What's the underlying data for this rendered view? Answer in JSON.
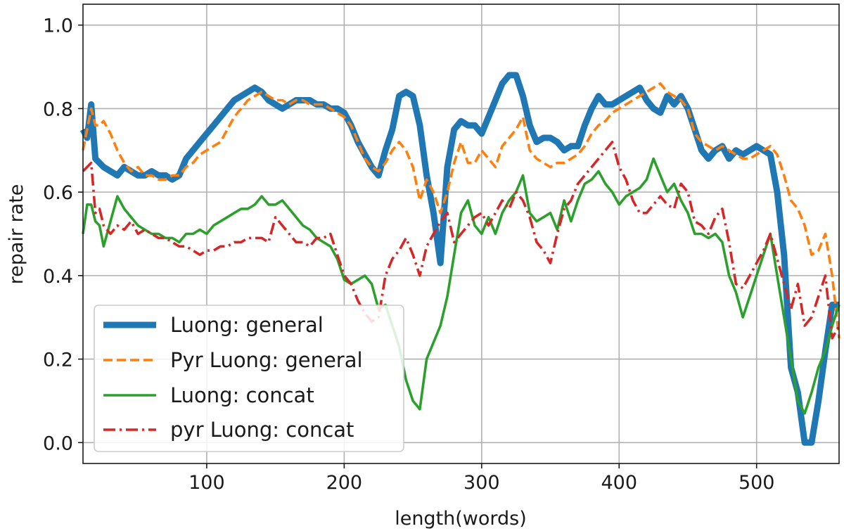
{
  "chart_data": {
    "type": "line",
    "title": "",
    "xlabel": "length(words)",
    "ylabel": "repair rate",
    "xlim": [
      10,
      560
    ],
    "ylim": [
      -0.05,
      1.05
    ],
    "xticks": [
      100,
      200,
      300,
      400,
      500
    ],
    "yticks": [
      0.0,
      0.2,
      0.4,
      0.6,
      0.8,
      1.0
    ],
    "xtick_labels": [
      "100",
      "200",
      "300",
      "400",
      "500"
    ],
    "ytick_labels": [
      "0.0",
      "0.2",
      "0.4",
      "0.6",
      "0.8",
      "1.0"
    ],
    "grid": true,
    "legend_position": "lower-left",
    "series": [
      {
        "name": "Luong: general",
        "color": "#1f77b4",
        "style": "solid-thick",
        "x": [
          10,
          13,
          16,
          19,
          22,
          25,
          30,
          35,
          40,
          45,
          50,
          55,
          60,
          65,
          70,
          75,
          80,
          85,
          90,
          95,
          100,
          105,
          110,
          115,
          120,
          125,
          130,
          135,
          140,
          145,
          150,
          155,
          160,
          165,
          170,
          175,
          180,
          185,
          190,
          195,
          200,
          205,
          210,
          215,
          220,
          225,
          230,
          235,
          240,
          245,
          250,
          255,
          260,
          265,
          270,
          275,
          280,
          285,
          290,
          295,
          300,
          305,
          310,
          315,
          320,
          325,
          330,
          335,
          340,
          345,
          350,
          355,
          360,
          365,
          370,
          375,
          380,
          385,
          390,
          395,
          400,
          405,
          410,
          415,
          420,
          425,
          430,
          435,
          440,
          445,
          450,
          455,
          460,
          465,
          470,
          475,
          480,
          485,
          490,
          495,
          500,
          505,
          510,
          515,
          520,
          525,
          530,
          535,
          540,
          545,
          550,
          555,
          560
        ],
        "values": [
          0.75,
          0.73,
          0.81,
          0.68,
          0.67,
          0.66,
          0.65,
          0.64,
          0.66,
          0.65,
          0.64,
          0.64,
          0.65,
          0.64,
          0.64,
          0.63,
          0.64,
          0.68,
          0.7,
          0.72,
          0.74,
          0.76,
          0.78,
          0.8,
          0.82,
          0.83,
          0.84,
          0.85,
          0.84,
          0.82,
          0.81,
          0.8,
          0.81,
          0.82,
          0.82,
          0.82,
          0.81,
          0.81,
          0.8,
          0.8,
          0.79,
          0.76,
          0.72,
          0.69,
          0.66,
          0.64,
          0.7,
          0.75,
          0.83,
          0.84,
          0.83,
          0.76,
          0.64,
          0.55,
          0.43,
          0.66,
          0.75,
          0.77,
          0.76,
          0.76,
          0.74,
          0.78,
          0.82,
          0.86,
          0.88,
          0.88,
          0.83,
          0.76,
          0.72,
          0.73,
          0.73,
          0.72,
          0.7,
          0.71,
          0.71,
          0.76,
          0.8,
          0.83,
          0.81,
          0.81,
          0.82,
          0.83,
          0.84,
          0.85,
          0.82,
          0.8,
          0.79,
          0.83,
          0.81,
          0.83,
          0.8,
          0.75,
          0.7,
          0.68,
          0.7,
          0.71,
          0.68,
          0.7,
          0.69,
          0.7,
          0.71,
          0.7,
          0.69,
          0.6,
          0.45,
          0.18,
          0.12,
          0.0,
          0.0,
          0.1,
          0.22,
          0.33,
          0.33
        ]
      },
      {
        "name": "Pyr Luong: general",
        "color": "#ff7f0e",
        "style": "dashed",
        "x": [
          10,
          13,
          16,
          19,
          22,
          25,
          30,
          35,
          40,
          45,
          50,
          55,
          60,
          65,
          70,
          75,
          80,
          85,
          90,
          95,
          100,
          105,
          110,
          115,
          120,
          125,
          130,
          135,
          140,
          145,
          150,
          155,
          160,
          165,
          170,
          175,
          180,
          185,
          190,
          195,
          200,
          205,
          210,
          215,
          220,
          225,
          230,
          235,
          240,
          245,
          250,
          255,
          260,
          265,
          270,
          275,
          280,
          285,
          290,
          295,
          300,
          305,
          310,
          315,
          320,
          325,
          330,
          335,
          340,
          345,
          350,
          355,
          360,
          365,
          370,
          375,
          380,
          385,
          390,
          395,
          400,
          405,
          410,
          415,
          420,
          425,
          430,
          435,
          440,
          445,
          450,
          455,
          460,
          465,
          470,
          475,
          480,
          485,
          490,
          495,
          500,
          505,
          510,
          515,
          520,
          525,
          530,
          535,
          540,
          545,
          550,
          555,
          560
        ],
        "values": [
          0.7,
          0.75,
          0.8,
          0.76,
          0.76,
          0.77,
          0.74,
          0.7,
          0.67,
          0.65,
          0.66,
          0.64,
          0.64,
          0.63,
          0.63,
          0.64,
          0.64,
          0.66,
          0.67,
          0.69,
          0.7,
          0.71,
          0.72,
          0.75,
          0.78,
          0.8,
          0.82,
          0.83,
          0.84,
          0.83,
          0.82,
          0.82,
          0.81,
          0.82,
          0.82,
          0.81,
          0.81,
          0.81,
          0.8,
          0.79,
          0.78,
          0.76,
          0.72,
          0.68,
          0.66,
          0.65,
          0.67,
          0.7,
          0.72,
          0.7,
          0.66,
          0.58,
          0.63,
          0.6,
          0.55,
          0.6,
          0.67,
          0.72,
          0.67,
          0.67,
          0.7,
          0.68,
          0.66,
          0.71,
          0.73,
          0.75,
          0.78,
          0.7,
          0.68,
          0.67,
          0.66,
          0.67,
          0.67,
          0.68,
          0.69,
          0.71,
          0.74,
          0.76,
          0.77,
          0.79,
          0.8,
          0.81,
          0.82,
          0.83,
          0.84,
          0.85,
          0.86,
          0.84,
          0.83,
          0.82,
          0.8,
          0.74,
          0.72,
          0.71,
          0.7,
          0.71,
          0.7,
          0.69,
          0.68,
          0.68,
          0.69,
          0.7,
          0.71,
          0.69,
          0.64,
          0.58,
          0.56,
          0.52,
          0.45,
          0.46,
          0.5,
          0.4,
          0.25
        ]
      },
      {
        "name": "Luong: concat",
        "color": "#2ca02c",
        "style": "solid",
        "x": [
          10,
          13,
          16,
          19,
          22,
          25,
          30,
          35,
          40,
          45,
          50,
          55,
          60,
          65,
          70,
          75,
          80,
          85,
          90,
          95,
          100,
          105,
          110,
          115,
          120,
          125,
          130,
          135,
          140,
          145,
          150,
          155,
          160,
          165,
          170,
          175,
          180,
          185,
          190,
          195,
          200,
          205,
          210,
          215,
          220,
          225,
          230,
          235,
          240,
          245,
          250,
          255,
          260,
          265,
          270,
          275,
          280,
          285,
          290,
          295,
          300,
          305,
          310,
          315,
          320,
          325,
          330,
          335,
          340,
          345,
          350,
          355,
          360,
          365,
          370,
          375,
          380,
          385,
          390,
          395,
          400,
          405,
          410,
          415,
          420,
          425,
          430,
          435,
          440,
          445,
          450,
          455,
          460,
          465,
          470,
          475,
          480,
          485,
          490,
          495,
          500,
          505,
          510,
          515,
          520,
          525,
          530,
          535,
          540,
          545,
          550,
          555,
          560
        ],
        "values": [
          0.5,
          0.57,
          0.57,
          0.53,
          0.52,
          0.47,
          0.53,
          0.59,
          0.56,
          0.54,
          0.52,
          0.51,
          0.5,
          0.5,
          0.49,
          0.49,
          0.48,
          0.5,
          0.5,
          0.51,
          0.5,
          0.52,
          0.53,
          0.54,
          0.55,
          0.56,
          0.56,
          0.57,
          0.59,
          0.57,
          0.57,
          0.58,
          0.56,
          0.54,
          0.52,
          0.51,
          0.49,
          0.48,
          0.47,
          0.44,
          0.39,
          0.38,
          0.39,
          0.4,
          0.38,
          0.32,
          0.33,
          0.28,
          0.23,
          0.15,
          0.1,
          0.08,
          0.2,
          0.24,
          0.28,
          0.35,
          0.45,
          0.55,
          0.58,
          0.52,
          0.5,
          0.54,
          0.5,
          0.55,
          0.58,
          0.6,
          0.64,
          0.55,
          0.53,
          0.54,
          0.55,
          0.51,
          0.58,
          0.53,
          0.58,
          0.62,
          0.63,
          0.65,
          0.62,
          0.6,
          0.57,
          0.59,
          0.6,
          0.61,
          0.63,
          0.68,
          0.64,
          0.6,
          0.62,
          0.58,
          0.55,
          0.5,
          0.5,
          0.49,
          0.5,
          0.48,
          0.4,
          0.36,
          0.3,
          0.35,
          0.4,
          0.45,
          0.5,
          0.4,
          0.3,
          0.2,
          0.1,
          0.07,
          0.12,
          0.18,
          0.22,
          0.28,
          0.33
        ]
      },
      {
        "name": "pyr Luong: concat",
        "color": "#d62728",
        "style": "dashdot",
        "x": [
          10,
          13,
          16,
          19,
          22,
          25,
          30,
          35,
          40,
          45,
          50,
          55,
          60,
          65,
          70,
          75,
          80,
          85,
          90,
          95,
          100,
          105,
          110,
          115,
          120,
          125,
          130,
          135,
          140,
          145,
          150,
          155,
          160,
          165,
          170,
          175,
          180,
          185,
          190,
          195,
          200,
          205,
          210,
          215,
          220,
          225,
          230,
          235,
          240,
          245,
          250,
          255,
          260,
          265,
          270,
          275,
          280,
          285,
          290,
          295,
          300,
          305,
          310,
          315,
          320,
          325,
          330,
          335,
          340,
          345,
          350,
          355,
          360,
          365,
          370,
          375,
          380,
          385,
          390,
          395,
          400,
          405,
          410,
          415,
          420,
          425,
          430,
          435,
          440,
          445,
          450,
          455,
          460,
          465,
          470,
          475,
          480,
          485,
          490,
          495,
          500,
          505,
          510,
          515,
          520,
          525,
          530,
          535,
          540,
          545,
          550,
          555,
          560
        ],
        "values": [
          0.65,
          0.66,
          0.67,
          0.55,
          0.56,
          0.52,
          0.5,
          0.52,
          0.51,
          0.53,
          0.5,
          0.51,
          0.5,
          0.49,
          0.49,
          0.48,
          0.47,
          0.47,
          0.46,
          0.45,
          0.46,
          0.46,
          0.47,
          0.47,
          0.48,
          0.48,
          0.49,
          0.49,
          0.49,
          0.48,
          0.54,
          0.52,
          0.5,
          0.48,
          0.48,
          0.47,
          0.49,
          0.49,
          0.5,
          0.45,
          0.4,
          0.38,
          0.34,
          0.31,
          0.29,
          0.3,
          0.4,
          0.44,
          0.46,
          0.49,
          0.45,
          0.4,
          0.47,
          0.5,
          0.53,
          0.55,
          0.48,
          0.5,
          0.52,
          0.54,
          0.55,
          0.52,
          0.55,
          0.58,
          0.56,
          0.6,
          0.58,
          0.54,
          0.48,
          0.46,
          0.43,
          0.5,
          0.56,
          0.58,
          0.62,
          0.64,
          0.66,
          0.68,
          0.7,
          0.72,
          0.66,
          0.63,
          0.58,
          0.55,
          0.55,
          0.57,
          0.59,
          0.57,
          0.56,
          0.62,
          0.6,
          0.53,
          0.52,
          0.5,
          0.54,
          0.56,
          0.48,
          0.38,
          0.37,
          0.4,
          0.43,
          0.46,
          0.5,
          0.44,
          0.38,
          0.32,
          0.38,
          0.28,
          0.3,
          0.35,
          0.4,
          0.25,
          0.28
        ]
      }
    ]
  }
}
